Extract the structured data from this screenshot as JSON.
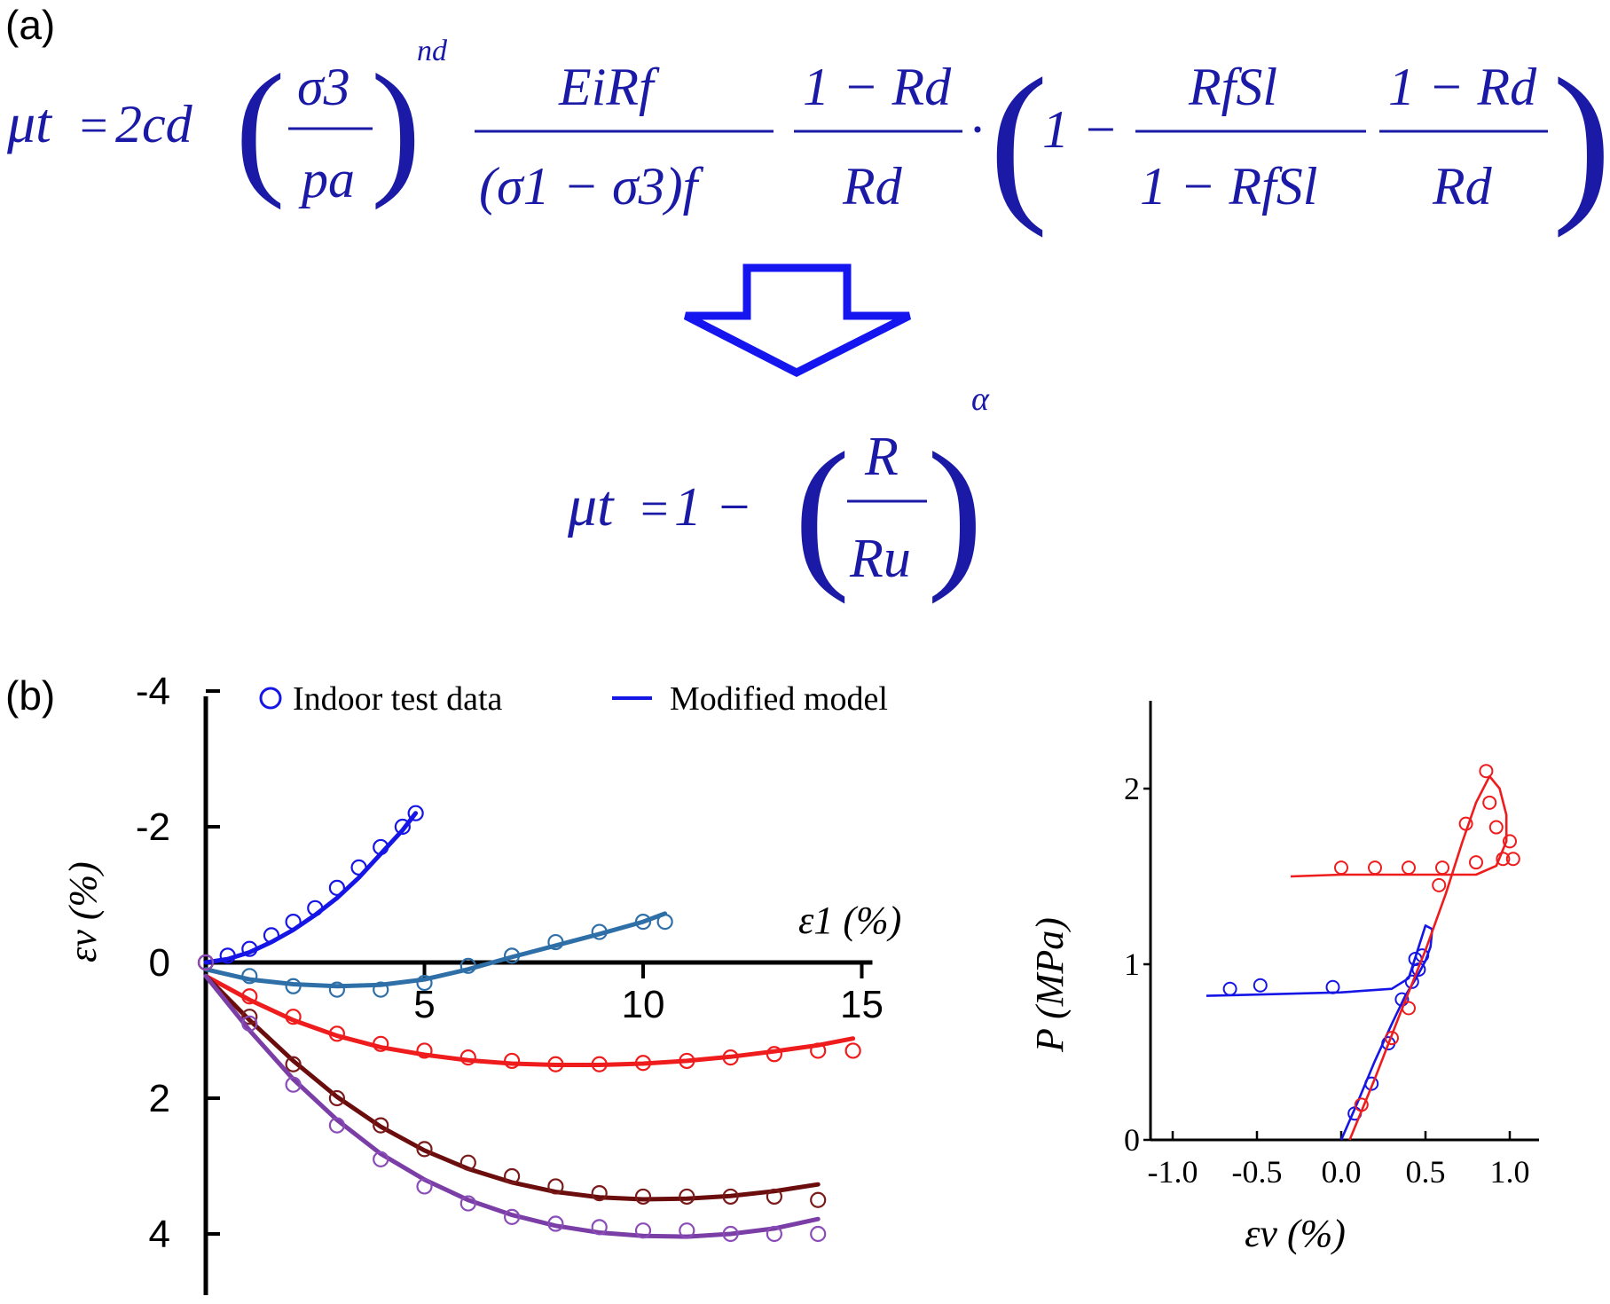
{
  "panel_labels": {
    "a": "(a)",
    "b": "(b)"
  },
  "equations": {
    "eq1": {
      "lhs": "μt",
      "coef": "2cd",
      "sigma3": "σ3",
      "pa": "pa",
      "nd": "nd",
      "EiRf": "EiRf",
      "sigdiff": "(σ1 − σ3)f",
      "one_minus_Rd": "1 − Rd",
      "Rd": "Rd",
      "RfSl": "RfSl",
      "one_minus_RfSl": "1 − RfSl",
      "one": "1 −",
      "dot": "·"
    },
    "eq2": {
      "lhs": "μt",
      "one": "1 −",
      "R": "R",
      "Ru": "Ru",
      "alpha": "α"
    }
  },
  "legend": {
    "marker_label": "Indoor test data",
    "line_label": "Modified model",
    "color": "#1010e0"
  },
  "chart_data": [
    {
      "type": "scatter",
      "xlabel": "ε1 (%)",
      "ylabel": "εv (%)",
      "xlim": [
        0,
        15
      ],
      "ylim": [
        -4,
        4.6
      ],
      "y_inverted": true,
      "x_ticks": [
        "5",
        "10",
        "15"
      ],
      "y_ticks": [
        "-4",
        "-2",
        "0",
        "2",
        "4"
      ],
      "legend_placement": "top",
      "series": [
        {
          "color": "#1515e6",
          "marker_color": "#1515e6",
          "points": [
            [
              0,
              0
            ],
            [
              0.5,
              -0.1
            ],
            [
              1,
              -0.2
            ],
            [
              1.5,
              -0.4
            ],
            [
              2,
              -0.6
            ],
            [
              2.5,
              -0.8
            ],
            [
              3,
              -1.1
            ],
            [
              3.5,
              -1.4
            ],
            [
              4,
              -1.7
            ],
            [
              4.5,
              -2.0
            ],
            [
              4.8,
              -2.2
            ]
          ],
          "fit": [
            [
              0,
              0
            ],
            [
              0.5,
              -0.05
            ],
            [
              1,
              -0.15
            ],
            [
              1.5,
              -0.3
            ],
            [
              2,
              -0.48
            ],
            [
              2.5,
              -0.7
            ],
            [
              3,
              -0.95
            ],
            [
              3.5,
              -1.25
            ],
            [
              4,
              -1.6
            ],
            [
              4.5,
              -1.95
            ],
            [
              4.8,
              -2.2
            ]
          ]
        },
        {
          "color": "#2f6fa8",
          "marker_color": "#2f6fa8",
          "points": [
            [
              0,
              0
            ],
            [
              1,
              0.2
            ],
            [
              2,
              0.35
            ],
            [
              3,
              0.4
            ],
            [
              4,
              0.4
            ],
            [
              5,
              0.3
            ],
            [
              6,
              0.05
            ],
            [
              7,
              -0.1
            ],
            [
              8,
              -0.3
            ],
            [
              9,
              -0.45
            ],
            [
              10,
              -0.6
            ],
            [
              10.5,
              -0.6
            ]
          ],
          "fit": [
            [
              0,
              0.1
            ],
            [
              1,
              0.25
            ],
            [
              2,
              0.32
            ],
            [
              3,
              0.35
            ],
            [
              4,
              0.33
            ],
            [
              5,
              0.25
            ],
            [
              6,
              0.1
            ],
            [
              7,
              -0.08
            ],
            [
              8,
              -0.25
            ],
            [
              9,
              -0.42
            ],
            [
              10,
              -0.6
            ],
            [
              10.5,
              -0.72
            ]
          ]
        },
        {
          "color": "#ee1c1c",
          "marker_color": "#ee1c1c",
          "points": [
            [
              0,
              0
            ],
            [
              1,
              0.5
            ],
            [
              2,
              0.8
            ],
            [
              3,
              1.05
            ],
            [
              4,
              1.2
            ],
            [
              5,
              1.3
            ],
            [
              6,
              1.4
            ],
            [
              7,
              1.45
            ],
            [
              8,
              1.5
            ],
            [
              9,
              1.5
            ],
            [
              10,
              1.48
            ],
            [
              11,
              1.45
            ],
            [
              12,
              1.4
            ],
            [
              13,
              1.35
            ],
            [
              14,
              1.3
            ],
            [
              14.8,
              1.3
            ]
          ],
          "fit": [
            [
              0,
              0.2
            ],
            [
              1,
              0.55
            ],
            [
              2,
              0.85
            ],
            [
              3,
              1.08
            ],
            [
              4,
              1.25
            ],
            [
              5,
              1.36
            ],
            [
              6,
              1.44
            ],
            [
              7,
              1.49
            ],
            [
              8,
              1.51
            ],
            [
              9,
              1.51
            ],
            [
              10,
              1.49
            ],
            [
              11,
              1.45
            ],
            [
              12,
              1.39
            ],
            [
              13,
              1.31
            ],
            [
              14,
              1.22
            ],
            [
              14.8,
              1.12
            ]
          ]
        },
        {
          "color": "#6b0d0d",
          "marker_color": "#7a1a1a",
          "points": [
            [
              0,
              0
            ],
            [
              1,
              0.8
            ],
            [
              2,
              1.5
            ],
            [
              3,
              2.0
            ],
            [
              4,
              2.4
            ],
            [
              5,
              2.75
            ],
            [
              6,
              2.95
            ],
            [
              7,
              3.15
            ],
            [
              8,
              3.3
            ],
            [
              9,
              3.4
            ],
            [
              10,
              3.45
            ],
            [
              11,
              3.45
            ],
            [
              12,
              3.45
            ],
            [
              13,
              3.45
            ],
            [
              14,
              3.5
            ]
          ],
          "fit": [
            [
              0,
              0.2
            ],
            [
              1,
              0.85
            ],
            [
              2,
              1.45
            ],
            [
              3,
              1.98
            ],
            [
              4,
              2.42
            ],
            [
              5,
              2.77
            ],
            [
              6,
              3.04
            ],
            [
              7,
              3.24
            ],
            [
              8,
              3.38
            ],
            [
              9,
              3.46
            ],
            [
              10,
              3.49
            ],
            [
              11,
              3.48
            ],
            [
              12,
              3.44
            ],
            [
              13,
              3.37
            ],
            [
              14,
              3.27
            ]
          ]
        },
        {
          "color": "#7a3ea6",
          "marker_color": "#8a4db8",
          "points": [
            [
              0,
              0
            ],
            [
              1,
              0.9
            ],
            [
              2,
              1.8
            ],
            [
              3,
              2.4
            ],
            [
              4,
              2.9
            ],
            [
              5,
              3.3
            ],
            [
              6,
              3.55
            ],
            [
              7,
              3.75
            ],
            [
              8,
              3.85
            ],
            [
              9,
              3.9
            ],
            [
              10,
              3.95
            ],
            [
              11,
              3.95
            ],
            [
              12,
              4.0
            ],
            [
              13,
              4.0
            ],
            [
              14,
              4.0
            ]
          ],
          "fit": [
            [
              0,
              0.2
            ],
            [
              1,
              1.0
            ],
            [
              2,
              1.72
            ],
            [
              3,
              2.32
            ],
            [
              4,
              2.82
            ],
            [
              5,
              3.2
            ],
            [
              6,
              3.5
            ],
            [
              7,
              3.72
            ],
            [
              8,
              3.88
            ],
            [
              9,
              3.98
            ],
            [
              10,
              4.03
            ],
            [
              11,
              4.04
            ],
            [
              12,
              4.0
            ],
            [
              13,
              3.92
            ],
            [
              14,
              3.78
            ]
          ]
        }
      ]
    },
    {
      "type": "scatter",
      "xlabel": "εv (%)",
      "ylabel": "P (MPa)",
      "xlim": [
        -1.0,
        1.0
      ],
      "ylim": [
        0,
        2
      ],
      "x_ticks": [
        "-1.0",
        "-0.5",
        "0.0",
        "0.5",
        "1.0"
      ],
      "y_ticks": [
        "0",
        "1",
        "2"
      ],
      "series": [
        {
          "color": "#1515e6",
          "points": [
            [
              0.08,
              0.15
            ],
            [
              0.18,
              0.32
            ],
            [
              0.28,
              0.55
            ],
            [
              0.36,
              0.8
            ],
            [
              0.42,
              0.9
            ],
            [
              0.46,
              0.97
            ],
            [
              0.48,
              1.05
            ],
            [
              0.44,
              1.03
            ],
            [
              -0.05,
              0.87
            ],
            [
              -0.48,
              0.88
            ],
            [
              -0.66,
              0.86
            ]
          ],
          "fit": [
            [
              0.0,
              0.0
            ],
            [
              0.1,
              0.22
            ],
            [
              0.2,
              0.45
            ],
            [
              0.3,
              0.66
            ],
            [
              0.38,
              0.82
            ],
            [
              0.45,
              0.93
            ],
            [
              0.5,
              1.02
            ],
            [
              0.53,
              1.1
            ],
            [
              0.54,
              1.2
            ],
            [
              0.5,
              1.22
            ],
            [
              0.46,
              1.1
            ],
            [
              0.4,
              0.92
            ],
            [
              0.3,
              0.86
            ],
            [
              0.0,
              0.84
            ],
            [
              -0.4,
              0.83
            ],
            [
              -0.8,
              0.82
            ]
          ]
        },
        {
          "color": "#ee1c1c",
          "points": [
            [
              0.12,
              0.2
            ],
            [
              0.3,
              0.58
            ],
            [
              0.4,
              0.75
            ],
            [
              0.58,
              1.45
            ],
            [
              0.6,
              1.55
            ],
            [
              0.74,
              1.8
            ],
            [
              0.86,
              2.1
            ],
            [
              0.88,
              1.92
            ],
            [
              0.92,
              1.78
            ],
            [
              1.0,
              1.7
            ],
            [
              1.02,
              1.6
            ],
            [
              0.96,
              1.6
            ],
            [
              0.8,
              1.58
            ],
            [
              0.4,
              1.55
            ],
            [
              0.2,
              1.55
            ],
            [
              0.0,
              1.55
            ]
          ],
          "fit": [
            [
              0.05,
              0.0
            ],
            [
              0.2,
              0.35
            ],
            [
              0.35,
              0.72
            ],
            [
              0.5,
              1.08
            ],
            [
              0.62,
              1.4
            ],
            [
              0.72,
              1.7
            ],
            [
              0.8,
              1.92
            ],
            [
              0.88,
              2.07
            ],
            [
              0.94,
              2.0
            ],
            [
              0.98,
              1.85
            ],
            [
              0.98,
              1.7
            ],
            [
              0.92,
              1.56
            ],
            [
              0.8,
              1.51
            ],
            [
              0.5,
              1.51
            ],
            [
              0.0,
              1.51
            ],
            [
              -0.3,
              1.5
            ]
          ]
        }
      ]
    }
  ]
}
